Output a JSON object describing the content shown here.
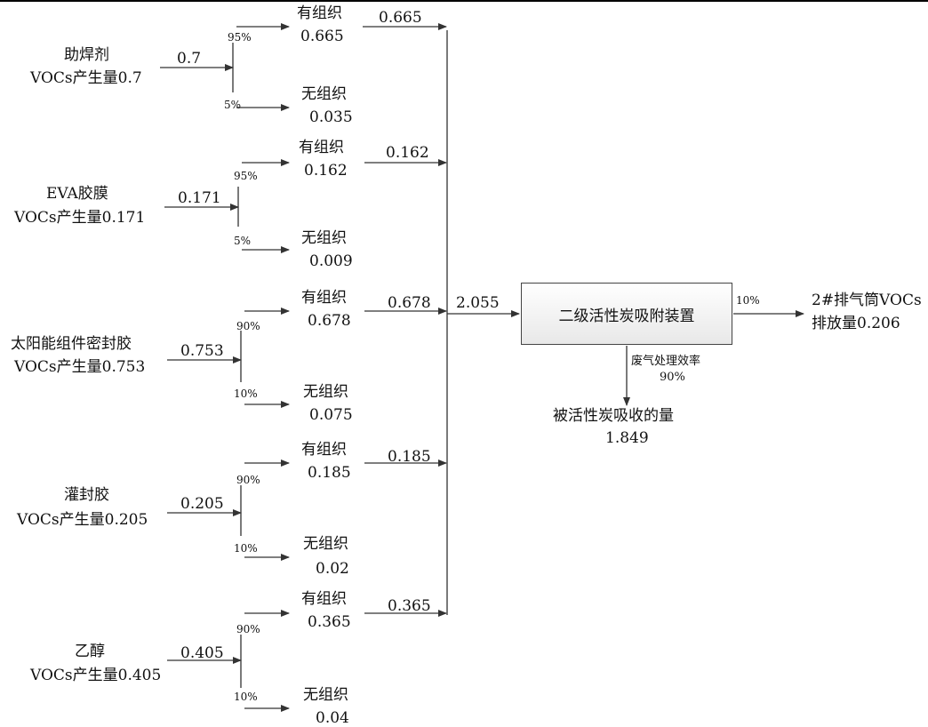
{
  "sources": [
    {
      "name": "助焊剂",
      "voc_label": "VOCs产生量0.7",
      "input": "0.7",
      "pct_org": "95%",
      "pct_unorg": "5%",
      "org_label": "有组织",
      "org_value": "0.665",
      "unorg_label": "无组织",
      "unorg_value": "0.035",
      "to_collector": "0.665"
    },
    {
      "name": "EVA胶膜",
      "voc_label": "VOCs产生量0.171",
      "input": "0.171",
      "pct_org": "95%",
      "pct_unorg": "5%",
      "org_label": "有组织",
      "org_value": "0.162",
      "unorg_label": "无组织",
      "unorg_value": "0.009",
      "to_collector": "0.162"
    },
    {
      "name": "太阳能组件密封胶",
      "voc_label": "VOCs产生量0.753",
      "input": "0.753",
      "pct_org": "90%",
      "pct_unorg": "10%",
      "org_label": "有组织",
      "org_value": "0.678",
      "unorg_label": "无组织",
      "unorg_value": "0.075",
      "to_collector": "0.678"
    },
    {
      "name": "灌封胶",
      "voc_label": "VOCs产生量0.205",
      "input": "0.205",
      "pct_org": "90%",
      "pct_unorg": "10%",
      "org_label": "有组织",
      "org_value": "0.185",
      "unorg_label": "无组织",
      "unorg_value": "0.02",
      "to_collector": "0.185"
    },
    {
      "name": "乙醇",
      "voc_label": "VOCs产生量0.405",
      "input": "0.405",
      "pct_org": "90%",
      "pct_unorg": "10%",
      "org_label": "有组织",
      "org_value": "0.365",
      "unorg_label": "无组织",
      "unorg_value": "0.04",
      "to_collector": "0.365"
    }
  ],
  "collector_total": "2.055",
  "device": "二级活性炭吸附装置",
  "outlet_pct": "10%",
  "outlet_label_line1": "2#排气筒VOCs",
  "outlet_label_line2": "排放量0.206",
  "efficiency_line1": "废气处理效率",
  "efficiency_line2": "90%",
  "absorbed_line1": "被活性炭吸收的量",
  "absorbed_line2": "1.849"
}
